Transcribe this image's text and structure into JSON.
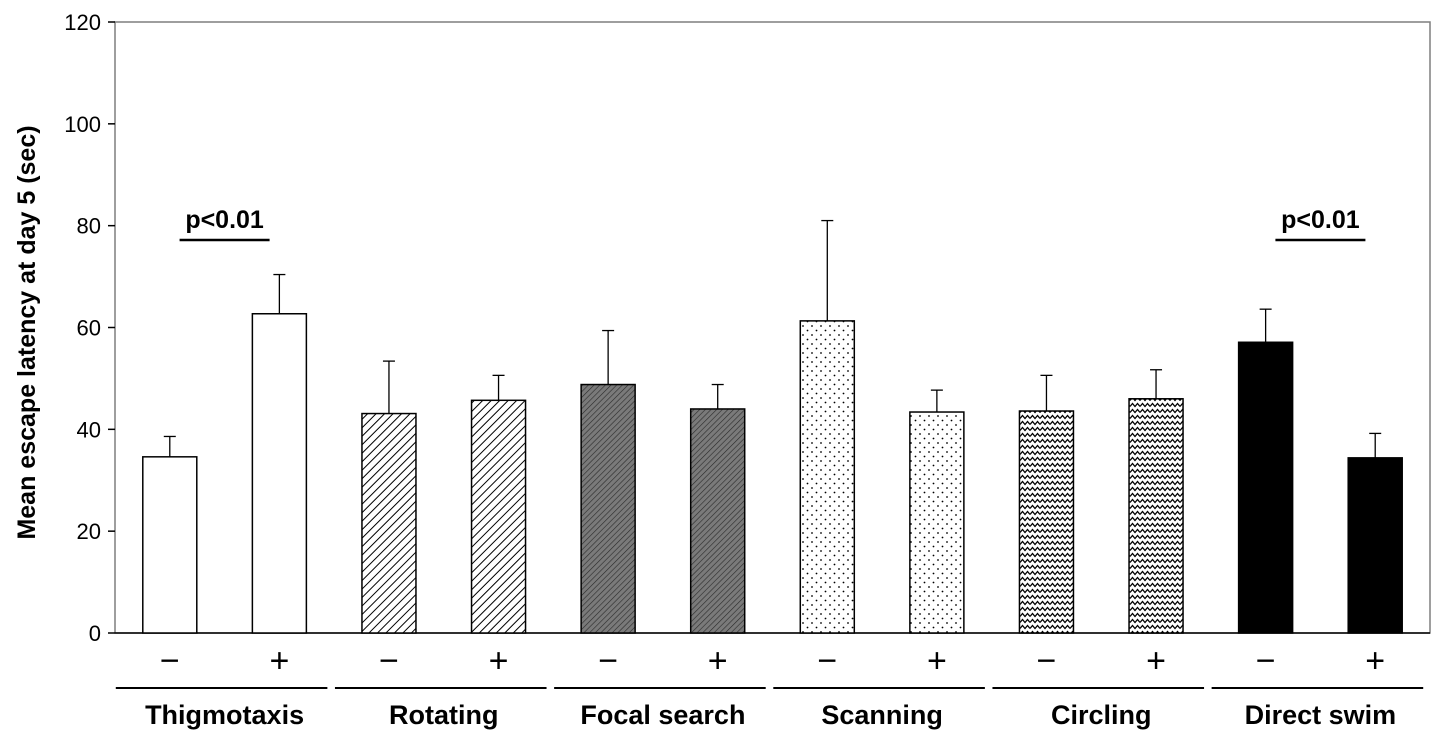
{
  "chart_data": {
    "type": "bar",
    "ylabel": "Mean escape latency at day 5 (sec)",
    "ylim": [
      0,
      120
    ],
    "yticks": [
      "0",
      "20",
      "40",
      "60",
      "80",
      "100",
      "120"
    ],
    "groups": [
      {
        "label": "Thigmotaxis",
        "pattern": "white"
      },
      {
        "label": "Rotating",
        "pattern": "diagonal-hatch"
      },
      {
        "label": "Focal search",
        "pattern": "dense-gray"
      },
      {
        "label": "Scanning",
        "pattern": "dots"
      },
      {
        "label": "Circling",
        "pattern": "zigzag"
      },
      {
        "label": "Direct swim",
        "pattern": "black"
      }
    ],
    "bars": [
      {
        "group": 0,
        "sign": "−",
        "value": 34.6,
        "error": 4.0
      },
      {
        "group": 0,
        "sign": "+",
        "value": 62.7,
        "error": 7.7
      },
      {
        "group": 1,
        "sign": "−",
        "value": 43.1,
        "error": 10.3
      },
      {
        "group": 1,
        "sign": "+",
        "value": 45.7,
        "error": 4.9
      },
      {
        "group": 2,
        "sign": "−",
        "value": 48.8,
        "error": 10.6
      },
      {
        "group": 2,
        "sign": "+",
        "value": 44.0,
        "error": 4.8
      },
      {
        "group": 3,
        "sign": "−",
        "value": 61.3,
        "error": 19.7
      },
      {
        "group": 3,
        "sign": "+",
        "value": 43.4,
        "error": 4.3
      },
      {
        "group": 4,
        "sign": "−",
        "value": 43.6,
        "error": 7.0
      },
      {
        "group": 4,
        "sign": "+",
        "value": 46.0,
        "error": 5.7
      },
      {
        "group": 5,
        "sign": "−",
        "value": 57.1,
        "error": 6.5
      },
      {
        "group": 5,
        "sign": "+",
        "value": 34.4,
        "error": 4.8
      }
    ],
    "annotations": [
      {
        "text": "p<0.01",
        "group": 0
      },
      {
        "text": "p<0.01",
        "group": 5
      }
    ],
    "colors": {
      "black": "#000000",
      "gray": "#808080",
      "white": "#ffffff"
    }
  }
}
